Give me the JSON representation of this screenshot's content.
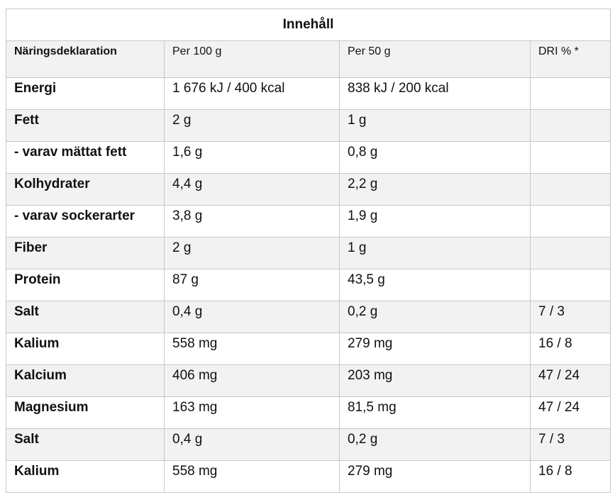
{
  "title": "Innehåll",
  "headers": [
    "Näringsdeklaration",
    "Per 100 g",
    "Per 50 g",
    "DRI % *"
  ],
  "rows": [
    [
      "Energi",
      "1 676 kJ / 400 kcal",
      "838 kJ / 200 kcal",
      ""
    ],
    [
      "Fett",
      "2 g",
      "1 g",
      ""
    ],
    [
      "- varav mättat fett",
      "1,6 g",
      "0,8 g",
      ""
    ],
    [
      "Kolhydrater",
      "4,4 g",
      "2,2 g",
      ""
    ],
    [
      "- varav sockerarter",
      "3,8 g",
      "1,9 g",
      ""
    ],
    [
      "Fiber",
      "2 g",
      "1 g",
      ""
    ],
    [
      "Protein",
      "87 g",
      "43,5 g",
      ""
    ],
    [
      "Salt",
      "0,4 g",
      "0,2 g",
      "7 / 3"
    ],
    [
      "Kalium",
      "558 mg",
      "279 mg",
      "16 / 8"
    ],
    [
      "Kalcium",
      "406 mg",
      "203 mg",
      "47 / 24"
    ],
    [
      "Magnesium",
      "163 mg",
      "81,5 mg",
      "47 / 24"
    ],
    [
      "Salt",
      "0,4 g",
      "0,2 g",
      "7 / 3"
    ],
    [
      "Kalium",
      "558 mg",
      "279 mg",
      "16 / 8"
    ]
  ]
}
